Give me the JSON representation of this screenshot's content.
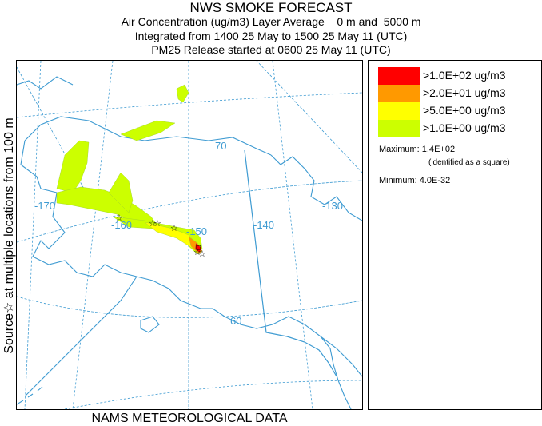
{
  "header": {
    "title": "NWS SMOKE FORECAST",
    "line1": "Air Concentration (ug/m3) Layer Average    0 m and  5000 m",
    "line2": "Integrated from 1400 25 May to 1500 25 May 11 (UTC)",
    "line3": "PM25 Release started at 0600 25 May 11 (UTC)"
  },
  "side_label": "Source☆ at multiple locations  from  100 m",
  "footer": "NAMS METEOROLOGICAL DATA",
  "map": {
    "longitude_labels": [
      "-170",
      "-160",
      "-150",
      "-140",
      "-130"
    ],
    "latitude_labels": [
      "70",
      "60"
    ],
    "colors": {
      "coastline": "#3e9bd2",
      "gridline": "#3e9bd2",
      "border": "#3e9bd2"
    }
  },
  "legend": {
    "items": [
      {
        "label": ">1.0E+02 ug/m3",
        "color": "#ff0000"
      },
      {
        "label": ">2.0E+01 ug/m3",
        "color": "#ff9900"
      },
      {
        "label": ">5.0E+00 ug/m3",
        "color": "#ffff00"
      },
      {
        "label": ">1.0E+00 ug/m3",
        "color": "#ccff00"
      }
    ],
    "maximum_label": "Maximum: 1.4E+02",
    "maximum_note": "(identified as a square)",
    "minimum_label": "Minimum: 4.0E-32"
  }
}
